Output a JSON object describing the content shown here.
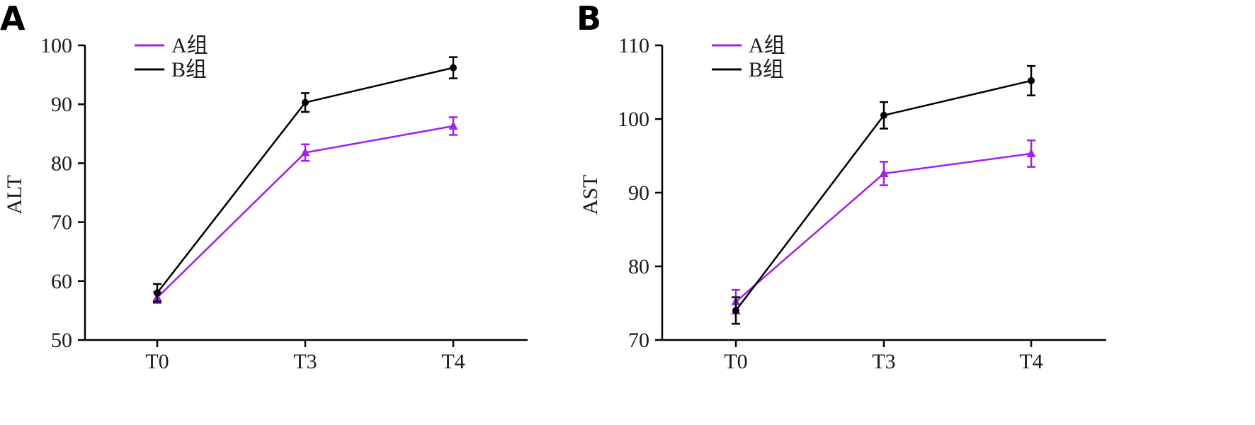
{
  "chart_data": [
    {
      "type": "line",
      "panel_label": "A",
      "ylabel": "ALT",
      "xlabel": "",
      "categories": [
        "T0",
        "T3",
        "T4"
      ],
      "ylim": [
        50,
        100
      ],
      "yticks": [
        50,
        60,
        70,
        80,
        90,
        100
      ],
      "grid": false,
      "legend_position": "top-left",
      "series": [
        {
          "name": "A组",
          "color": "#a020f0",
          "marker": "triangle",
          "values": [
            57.2,
            81.8,
            86.3
          ],
          "errors": [
            0.9,
            1.4,
            1.5
          ]
        },
        {
          "name": "B组",
          "color": "#000000",
          "marker": "circle",
          "values": [
            58.0,
            90.3,
            96.2
          ],
          "errors": [
            1.5,
            1.6,
            1.8
          ]
        }
      ]
    },
    {
      "type": "line",
      "panel_label": "B",
      "ylabel": "AST",
      "xlabel": "",
      "categories": [
        "T0",
        "T3",
        "T4"
      ],
      "ylim": [
        70,
        110
      ],
      "yticks": [
        70,
        80,
        90,
        100,
        110
      ],
      "grid": false,
      "legend_position": "top-left",
      "series": [
        {
          "name": "A组",
          "color": "#a020f0",
          "marker": "triangle",
          "values": [
            75.2,
            92.6,
            95.3
          ],
          "errors": [
            1.6,
            1.6,
            1.8
          ]
        },
        {
          "name": "B组",
          "color": "#000000",
          "marker": "circle",
          "values": [
            74.0,
            100.5,
            105.2
          ],
          "errors": [
            1.8,
            1.8,
            2.0
          ]
        }
      ]
    }
  ]
}
